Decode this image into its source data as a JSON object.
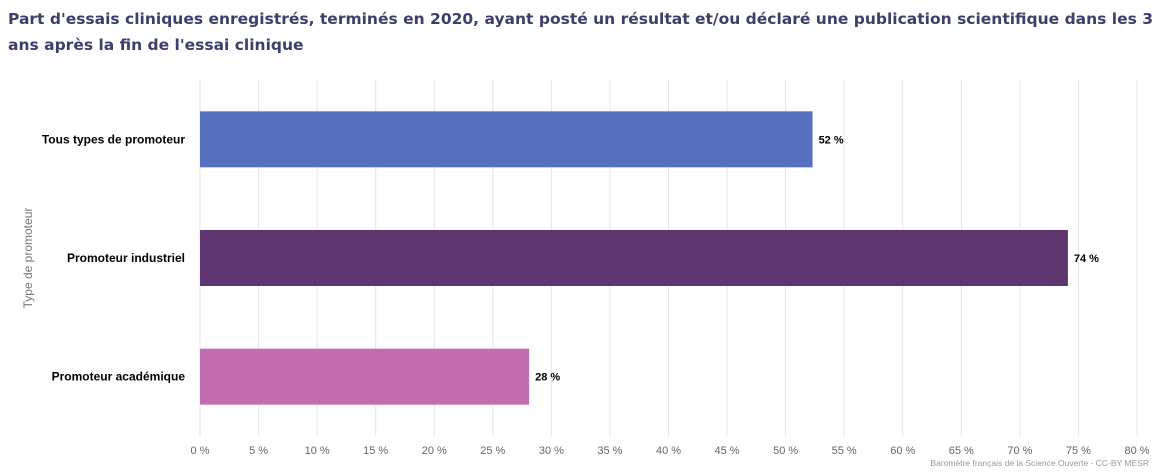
{
  "title": "Part d'essais cliniques enregistrés, terminés en 2020, ayant posté un résultat et/ou déclaré une publication scientifique dans les 3 ans après la fin de l'essai clinique",
  "credits": "Baromètre français de la Science Ouverte - CC-BY MESR",
  "chart_data": {
    "type": "bar",
    "orientation": "horizontal",
    "title": "Part d'essais cliniques enregistrés, terminés en 2020, ayant posté un résultat et/ou déclaré une publication scientifique dans les 3 ans après la fin de l'essai clinique",
    "xlabel": "",
    "ylabel": "Type de promoteur",
    "categories": [
      "Tous types de promoteur",
      "Promoteur industriel",
      "Promoteur académique"
    ],
    "values": [
      52.3,
      74.1,
      28.1
    ],
    "value_labels": [
      "52 %",
      "74 %",
      "28 %"
    ],
    "colors": [
      "#5770be",
      "#5e356e",
      "#c26db0"
    ],
    "xlim": [
      0,
      80
    ],
    "ticks": [
      0,
      5,
      10,
      15,
      20,
      25,
      30,
      35,
      40,
      45,
      50,
      55,
      60,
      65,
      70,
      75,
      80
    ],
    "tick_labels": [
      "0 %",
      "5 %",
      "10 %",
      "15 %",
      "20 %",
      "25 %",
      "30 %",
      "35 %",
      "40 %",
      "45 %",
      "50 %",
      "55 %",
      "60 %",
      "65 %",
      "70 %",
      "75 %",
      "80 %"
    ],
    "grid": true,
    "legend": "none"
  }
}
